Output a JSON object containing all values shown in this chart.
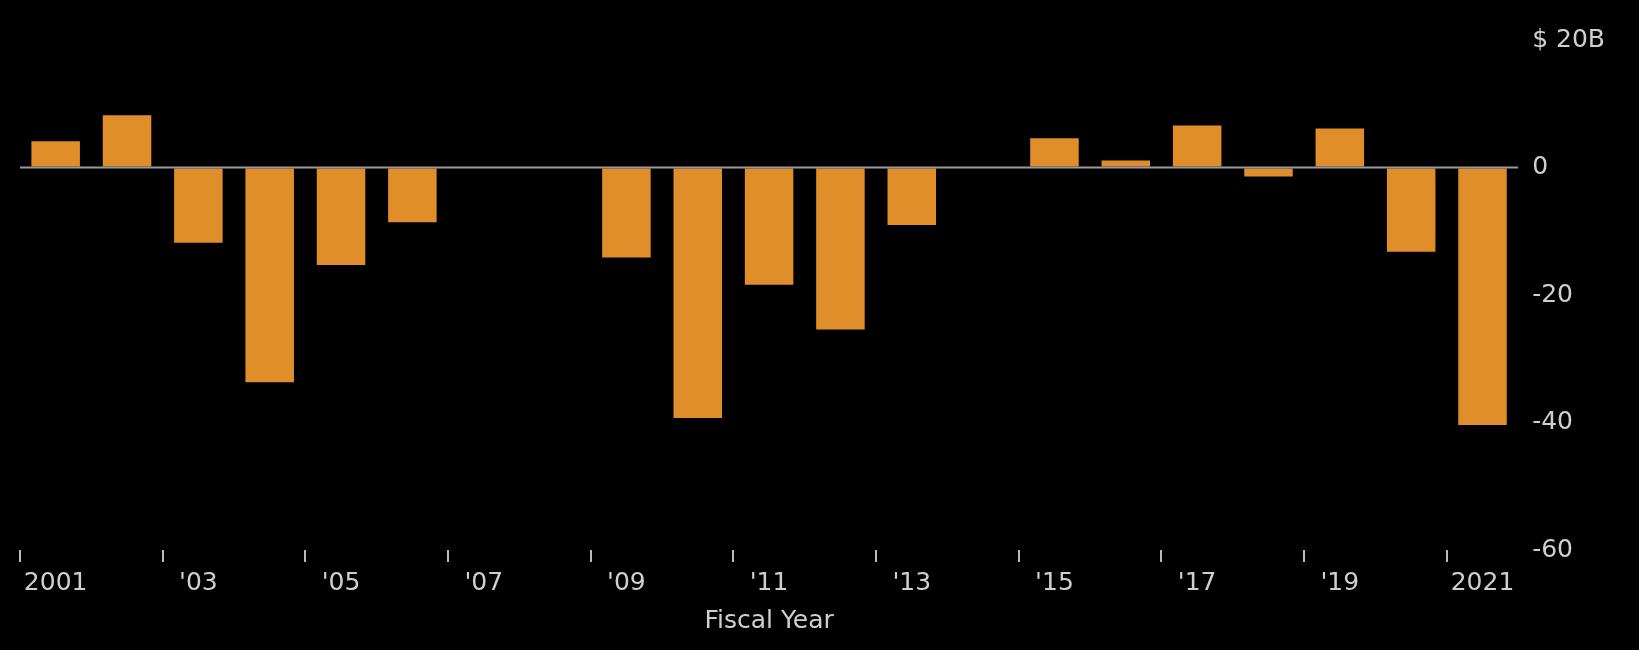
{
  "chart_data": {
    "type": "bar",
    "xlabel": "Fiscal Year",
    "categories": [
      "2001",
      null,
      "'03",
      null,
      "'05",
      null,
      "'07",
      null,
      "'09",
      null,
      "'11",
      null,
      "'13",
      null,
      "'15",
      null,
      "'17",
      null,
      "'19",
      null,
      "2021"
    ],
    "values": [
      4.1,
      8.2,
      -11.8,
      -33.7,
      -15.3,
      -8.6,
      0,
      0,
      -14.1,
      -39.3,
      -18.4,
      -25.4,
      -9.0,
      0,
      4.6,
      1.1,
      6.6,
      -1.4,
      6.1,
      -13.2,
      -40.4
    ],
    "color": "#e08e2a",
    "ylim": [
      -60,
      20
    ],
    "yticks": [
      {
        "value": 20,
        "label": "$ 20B"
      },
      0,
      -20,
      -40,
      -60
    ],
    "ref_lines": [
      {
        "axis": "y",
        "value": 0,
        "color": "#9a9a9a"
      }
    ],
    "grid": false
  }
}
